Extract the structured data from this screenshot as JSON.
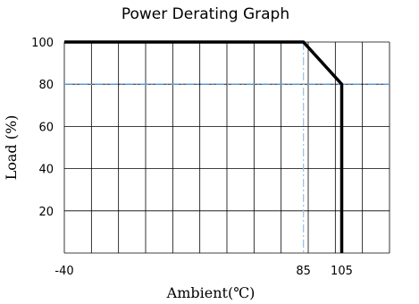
{
  "chart_data": {
    "type": "line",
    "title": "Power Derating Graph",
    "xlabel": "Ambient(℃)",
    "ylabel": "Load (%)",
    "xlim": [
      -40,
      130
    ],
    "ylim": [
      0,
      100
    ],
    "x_ticks": [
      {
        "value": -40,
        "label": "-40"
      },
      {
        "value": 85,
        "label": "85"
      },
      {
        "value": 105,
        "label": "105"
      }
    ],
    "y_ticks": [
      {
        "value": 20,
        "label": "20"
      },
      {
        "value": 40,
        "label": "40"
      },
      {
        "value": 60,
        "label": "60"
      },
      {
        "value": 80,
        "label": "80"
      },
      {
        "value": 100,
        "label": "100"
      }
    ],
    "grid": true,
    "series": [
      {
        "color": "#000000",
        "style": "solid",
        "x": [
          -40,
          85,
          105,
          105
        ],
        "y": [
          100,
          100,
          80,
          0
        ]
      }
    ],
    "reference_lines": [
      {
        "orientation": "horizontal",
        "value": 80,
        "color": "#5b9bd5",
        "style": "dash-dot"
      },
      {
        "orientation": "vertical",
        "value": 85,
        "color": "#9dc3e6",
        "style": "dash-dot"
      }
    ]
  }
}
